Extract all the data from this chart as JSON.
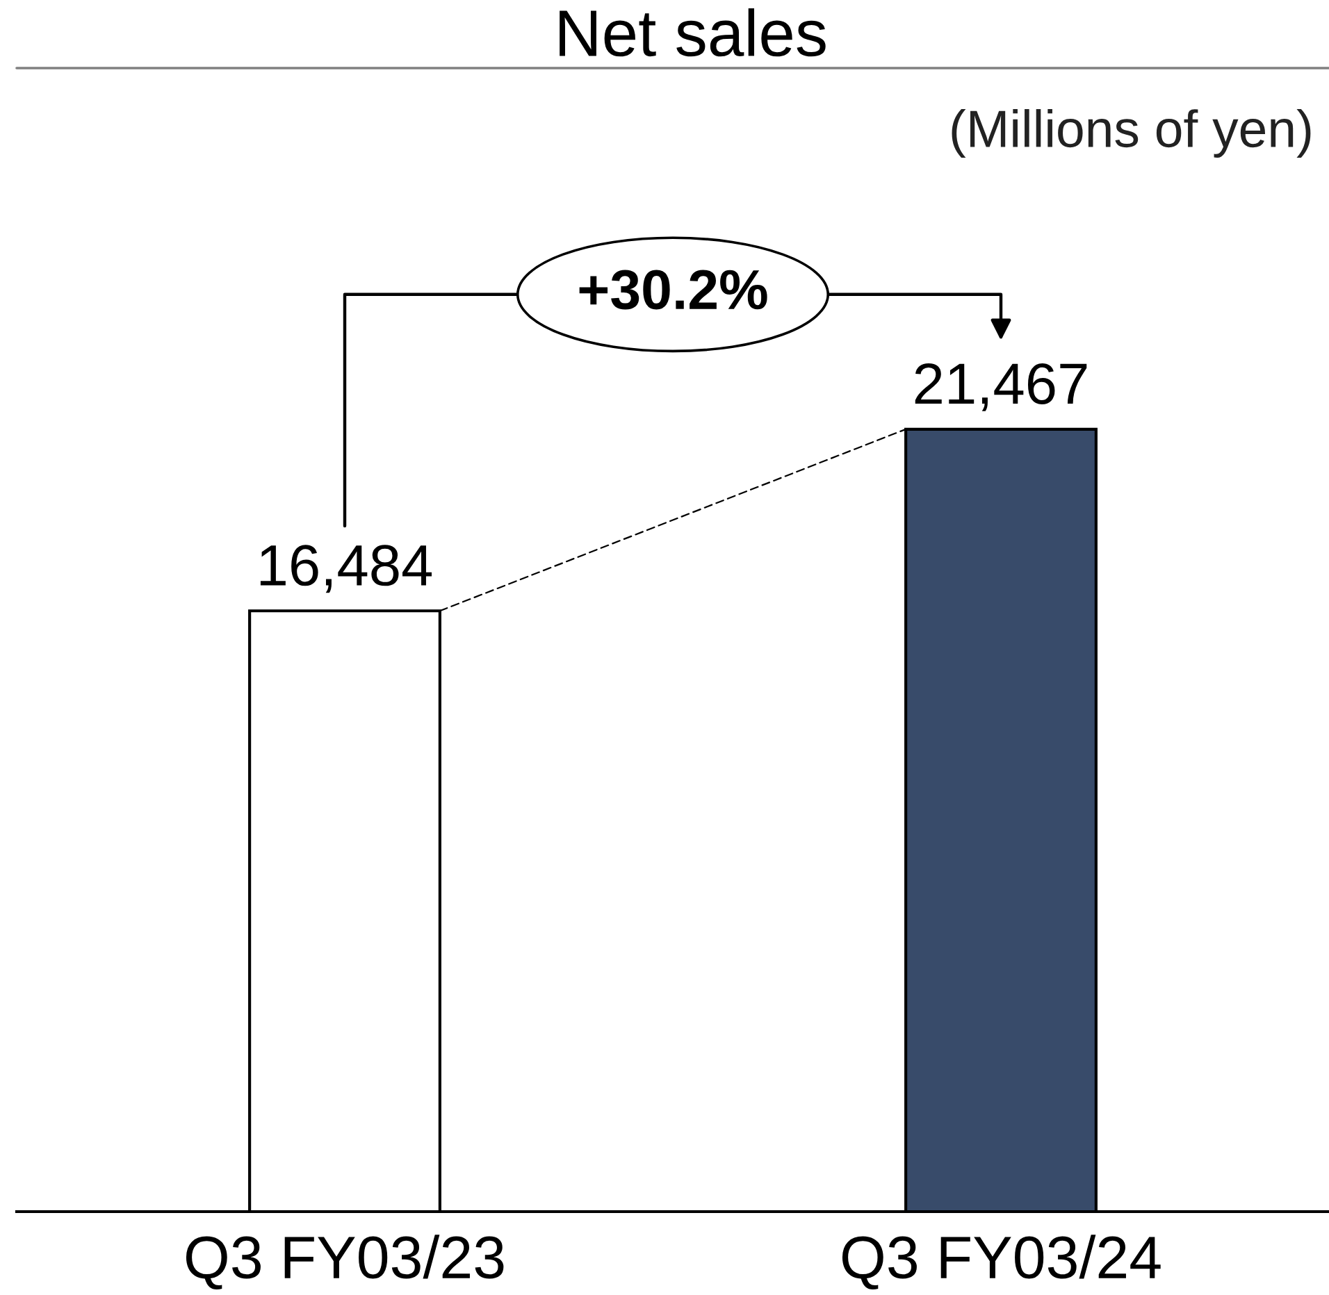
{
  "chart_data": {
    "type": "bar",
    "title": "Net sales",
    "categories": [
      "Q3 FY03/23",
      "Q3 FY03/24"
    ],
    "values": [
      16484,
      21467
    ],
    "colors": [
      "#ffffff",
      "#384b6a"
    ],
    "value_labels": [
      "16,484",
      "21,467"
    ],
    "annotations": [
      "(Millions of yen)",
      "+30.2%"
    ]
  }
}
